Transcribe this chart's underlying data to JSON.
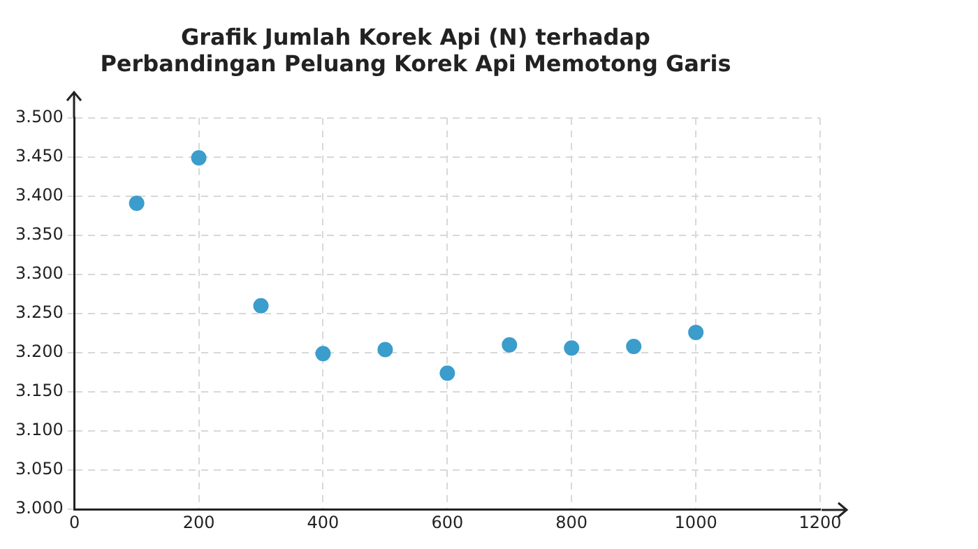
{
  "chart_data": {
    "type": "scatter",
    "title": "Grafik Jumlah Korek Api (N) terhadap\nPerbandingan Peluang Korek Api Memotong Garis",
    "x": [
      100,
      200,
      300,
      400,
      500,
      600,
      700,
      800,
      900,
      1000
    ],
    "series": [
      {
        "color": "#3b9dcc",
        "values": [
          3.391,
          3.449,
          3.26,
          3.199,
          3.204,
          3.174,
          3.21,
          3.206,
          3.208,
          3.226
        ]
      }
    ],
    "xlim": [
      0,
      1200
    ],
    "xticks": [
      0,
      200,
      400,
      600,
      800,
      1000,
      1200
    ],
    "ylim": [
      3.0,
      3.5
    ],
    "yticks": [
      {
        "value": 3.0,
        "label": "3.000"
      },
      {
        "value": 3.05,
        "label": "3.050"
      },
      {
        "value": 3.1,
        "label": "3.100"
      },
      {
        "value": 3.15,
        "label": "3.150"
      },
      {
        "value": 3.2,
        "label": "3.200"
      },
      {
        "value": 3.25,
        "label": "3.250"
      },
      {
        "value": 3.3,
        "label": "3.300"
      },
      {
        "value": 3.35,
        "label": "3.350"
      },
      {
        "value": 3.4,
        "label": "3.400"
      },
      {
        "value": 3.45,
        "label": "3.450"
      },
      {
        "value": 3.5,
        "label": "3.500"
      }
    ],
    "grid": true,
    "marker": "circle"
  }
}
